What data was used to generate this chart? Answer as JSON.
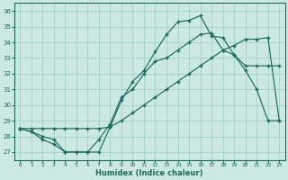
{
  "xlabel": "Humidex (Indice chaleur)",
  "xlim": [
    -0.5,
    23.5
  ],
  "ylim": [
    26.5,
    36.5
  ],
  "yticks": [
    27,
    28,
    29,
    30,
    31,
    32,
    33,
    34,
    35,
    36
  ],
  "xticks": [
    0,
    1,
    2,
    3,
    4,
    5,
    6,
    7,
    8,
    9,
    10,
    11,
    12,
    13,
    14,
    15,
    16,
    17,
    18,
    19,
    20,
    21,
    22,
    23
  ],
  "bg_color": "#cce8e3",
  "grid_color": "#a8d4ce",
  "line_color": "#1a6b5e",
  "line1_y": [
    28.5,
    28.3,
    28.0,
    27.8,
    27.0,
    27.0,
    27.0,
    27.0,
    28.6,
    30.3,
    31.5,
    32.2,
    33.4,
    34.5,
    35.3,
    35.4,
    35.7,
    34.4,
    34.3,
    33.2,
    32.2,
    31.0,
    29.0,
    29.0
  ],
  "line2_y": [
    28.5,
    28.5,
    28.5,
    28.5,
    28.5,
    28.5,
    28.5,
    28.5,
    28.6,
    29.0,
    29.5,
    30.0,
    30.5,
    31.0,
    31.5,
    32.0,
    32.5,
    33.0,
    33.5,
    33.8,
    34.2,
    34.2,
    34.3,
    29.0
  ],
  "line3_y": [
    28.5,
    28.3,
    27.8,
    27.5,
    27.0,
    27.0,
    27.0,
    27.8,
    28.8,
    30.5,
    31.0,
    32.0,
    32.8,
    33.0,
    33.5,
    34.0,
    34.5,
    34.6,
    33.5,
    33.2,
    32.5,
    32.5,
    32.5,
    32.5
  ]
}
